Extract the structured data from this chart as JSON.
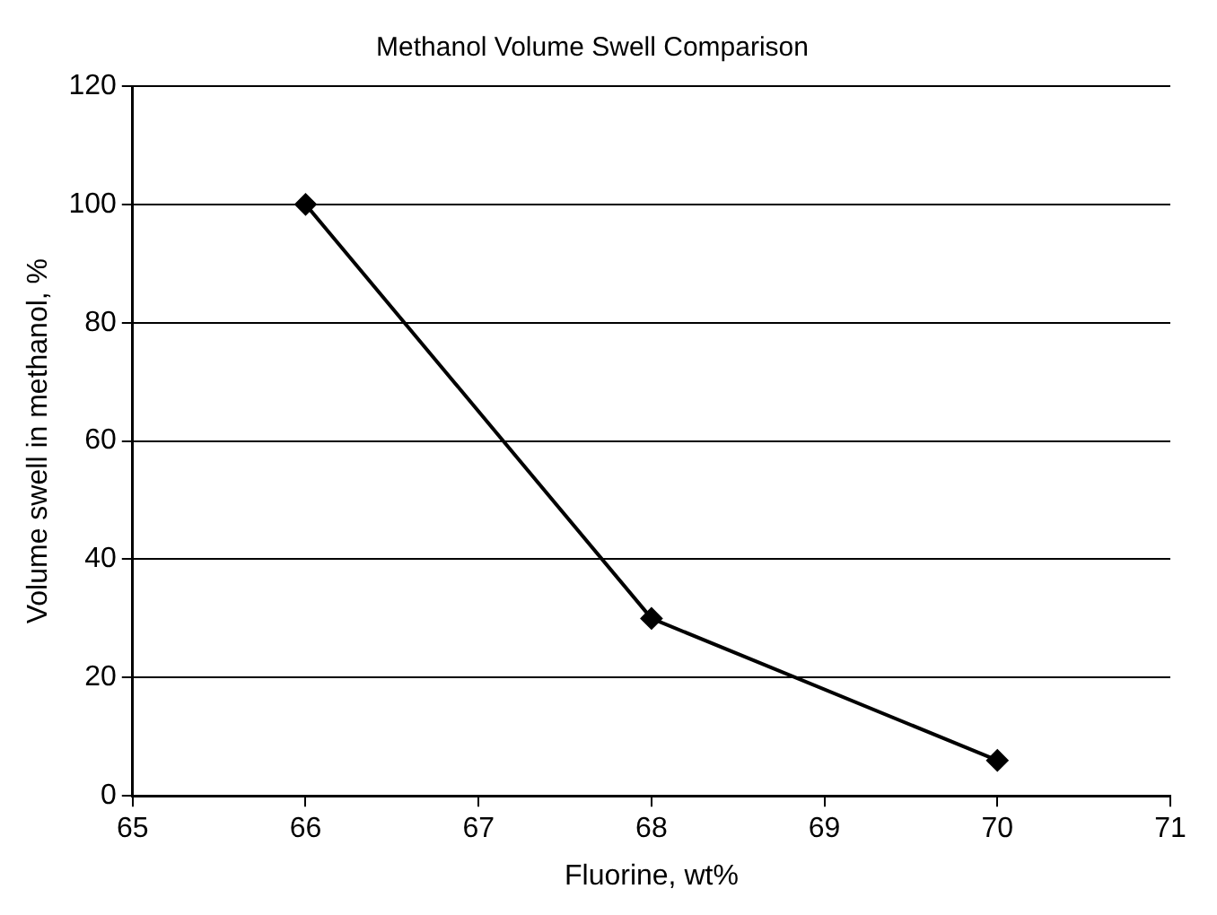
{
  "chart_data": {
    "type": "line",
    "title": "Methanol Volume Swell Comparison",
    "xlabel": "Fluorine, wt%",
    "ylabel": "Volume swell in methanol, %",
    "x": [
      66,
      68,
      70
    ],
    "series": [
      {
        "color": "#000000",
        "values": [
          100,
          30,
          6
        ]
      }
    ],
    "xlim": [
      65,
      71
    ],
    "xticks": [
      65,
      66,
      67,
      68,
      69,
      70,
      71
    ],
    "ylim": [
      0,
      120
    ],
    "yticks": [
      0,
      20,
      40,
      60,
      80,
      100,
      120
    ],
    "grid": "y",
    "legend": false,
    "marker": "diamond",
    "line_style": "solid"
  }
}
